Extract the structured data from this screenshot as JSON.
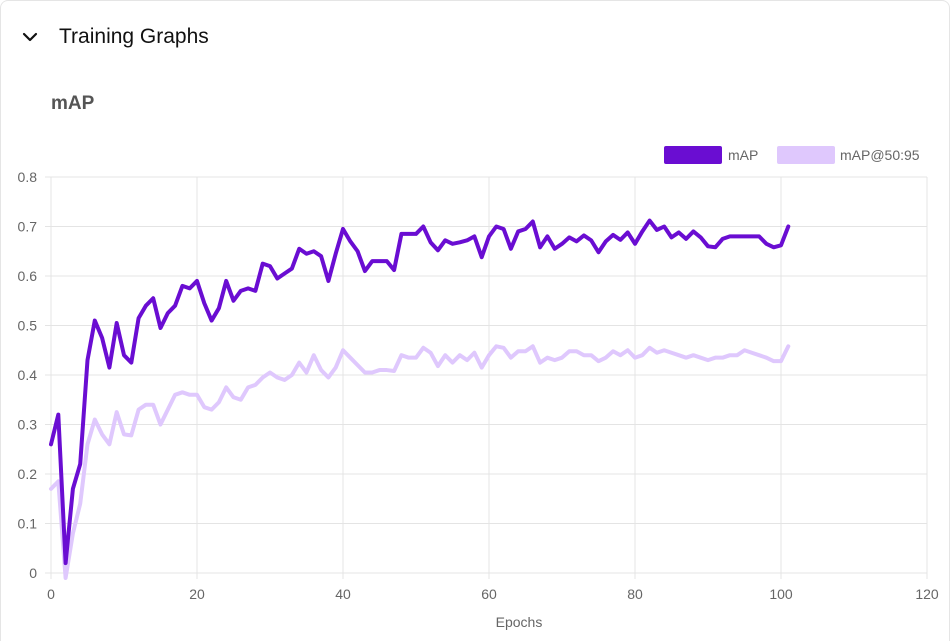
{
  "section": {
    "header_title": "Training Graphs",
    "chevron_icon": "chevron-down-icon"
  },
  "chart_title": "mAP",
  "colors": {
    "map": "#6a0dd2",
    "map50_95": "#dfc8fd",
    "grid": "#e4e4e4",
    "text": "#666666"
  },
  "chart_data": {
    "type": "line",
    "title": "mAP",
    "xlabel": "Epochs",
    "ylabel": "",
    "xlim": [
      0,
      120
    ],
    "ylim": [
      0,
      0.8
    ],
    "x_ticks": [
      "0",
      "20",
      "40",
      "60",
      "80",
      "100",
      "120"
    ],
    "y_ticks": [
      "0",
      "0.1",
      "0.2",
      "0.3",
      "0.4",
      "0.5",
      "0.6",
      "0.7",
      "0.8"
    ],
    "grid": true,
    "legend_position": "top-right",
    "x": [
      0,
      1,
      2,
      3,
      4,
      5,
      6,
      7,
      8,
      9,
      10,
      11,
      12,
      13,
      14,
      15,
      16,
      17,
      18,
      19,
      20,
      21,
      22,
      23,
      24,
      25,
      26,
      27,
      28,
      29,
      30,
      31,
      32,
      33,
      34,
      35,
      36,
      37,
      38,
      39,
      40,
      41,
      42,
      43,
      44,
      45,
      46,
      47,
      48,
      49,
      50,
      51,
      52,
      53,
      54,
      55,
      56,
      57,
      58,
      59,
      60,
      61,
      62,
      63,
      64,
      65,
      66,
      67,
      68,
      69,
      70,
      71,
      72,
      73,
      74,
      75,
      76,
      77,
      78,
      79,
      80,
      81,
      82,
      83,
      84,
      85,
      86,
      87,
      88,
      89,
      90,
      91,
      92,
      93,
      94,
      95,
      96,
      97,
      98,
      99,
      100,
      101
    ],
    "series": [
      {
        "name": "mAP",
        "values": [
          0.26,
          0.32,
          0.02,
          0.17,
          0.22,
          0.43,
          0.51,
          0.475,
          0.415,
          0.505,
          0.44,
          0.425,
          0.515,
          0.54,
          0.555,
          0.495,
          0.525,
          0.54,
          0.58,
          0.575,
          0.59,
          0.545,
          0.51,
          0.535,
          0.59,
          0.55,
          0.57,
          0.575,
          0.57,
          0.625,
          0.62,
          0.595,
          0.605,
          0.615,
          0.655,
          0.645,
          0.65,
          0.64,
          0.59,
          0.645,
          0.695,
          0.67,
          0.65,
          0.61,
          0.63,
          0.63,
          0.63,
          0.612,
          0.685,
          0.685,
          0.685,
          0.7,
          0.668,
          0.652,
          0.672,
          0.665,
          0.668,
          0.672,
          0.68,
          0.638,
          0.68,
          0.7,
          0.695,
          0.655,
          0.69,
          0.695,
          0.71,
          0.658,
          0.68,
          0.655,
          0.665,
          0.678,
          0.67,
          0.682,
          0.672,
          0.648,
          0.67,
          0.683,
          0.673,
          0.688,
          0.665,
          0.69,
          0.712,
          0.693,
          0.7,
          0.678,
          0.688,
          0.675,
          0.69,
          0.678,
          0.66,
          0.658,
          0.675,
          0.68,
          0.68,
          0.68,
          0.68,
          0.68,
          0.665,
          0.658,
          0.662,
          0.7
        ]
      },
      {
        "name": "mAP@50:95",
        "values": [
          0.17,
          0.185,
          -0.01,
          0.08,
          0.14,
          0.26,
          0.31,
          0.28,
          0.26,
          0.325,
          0.28,
          0.278,
          0.33,
          0.34,
          0.34,
          0.3,
          0.33,
          0.36,
          0.365,
          0.36,
          0.36,
          0.335,
          0.33,
          0.345,
          0.375,
          0.355,
          0.35,
          0.375,
          0.38,
          0.395,
          0.405,
          0.395,
          0.39,
          0.4,
          0.425,
          0.405,
          0.44,
          0.41,
          0.395,
          0.415,
          0.45,
          0.435,
          0.42,
          0.405,
          0.405,
          0.41,
          0.41,
          0.408,
          0.44,
          0.435,
          0.435,
          0.455,
          0.445,
          0.418,
          0.44,
          0.425,
          0.44,
          0.43,
          0.445,
          0.415,
          0.44,
          0.458,
          0.455,
          0.435,
          0.448,
          0.448,
          0.458,
          0.425,
          0.435,
          0.43,
          0.435,
          0.448,
          0.448,
          0.44,
          0.44,
          0.428,
          0.435,
          0.448,
          0.44,
          0.45,
          0.435,
          0.44,
          0.455,
          0.445,
          0.45,
          0.445,
          0.44,
          0.435,
          0.44,
          0.435,
          0.43,
          0.435,
          0.435,
          0.44,
          0.44,
          0.45,
          0.445,
          0.44,
          0.435,
          0.428,
          0.428,
          0.458
        ]
      }
    ]
  }
}
